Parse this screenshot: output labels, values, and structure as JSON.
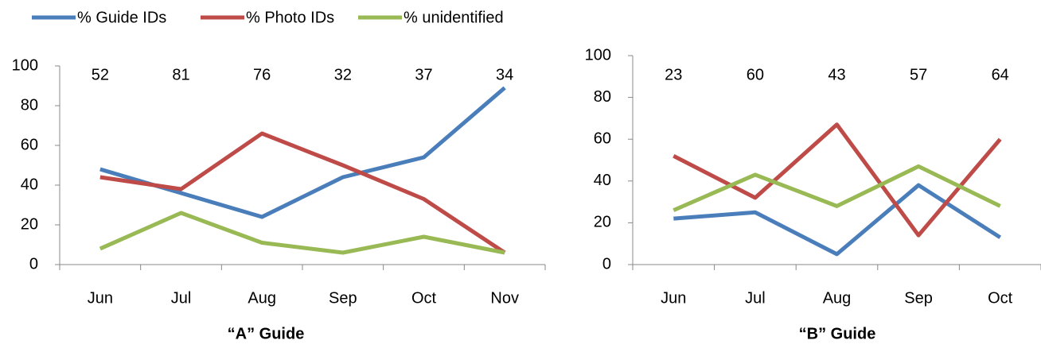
{
  "chart_data": [
    {
      "type": "line",
      "title": "“A” Guide",
      "categories": [
        "Jun",
        "Jul",
        "Aug",
        "Sep",
        "Oct",
        "Nov"
      ],
      "sample_sizes": [
        52,
        81,
        76,
        32,
        37,
        34
      ],
      "series": [
        {
          "name": "% Guide IDs",
          "color": "#4a7ebb",
          "values": [
            48,
            36,
            24,
            44,
            54,
            89
          ]
        },
        {
          "name": "% Photo IDs",
          "color": "#be4b48",
          "values": [
            44,
            38,
            66,
            50,
            33,
            6
          ]
        },
        {
          "name": "% unidentified",
          "color": "#98b954",
          "values": [
            8,
            26,
            11,
            6,
            14,
            6
          ]
        }
      ],
      "ylim": [
        0,
        100
      ],
      "yticks": [
        0,
        20,
        40,
        60,
        80,
        100
      ]
    },
    {
      "type": "line",
      "title": "“B” Guide",
      "categories": [
        "Jun",
        "Jul",
        "Aug",
        "Sep",
        "Oct"
      ],
      "sample_sizes": [
        23,
        60,
        43,
        57,
        64
      ],
      "series": [
        {
          "color": "#4a7ebb",
          "values": [
            22,
            25,
            5,
            38,
            13
          ]
        },
        {
          "color": "#be4b48",
          "values": [
            52,
            32,
            67,
            14,
            60
          ]
        },
        {
          "color": "#98b954",
          "values": [
            26,
            43,
            28,
            47,
            28
          ]
        }
      ],
      "ylim": [
        0,
        100
      ],
      "yticks": [
        0,
        20,
        40,
        60,
        80,
        100
      ]
    }
  ]
}
